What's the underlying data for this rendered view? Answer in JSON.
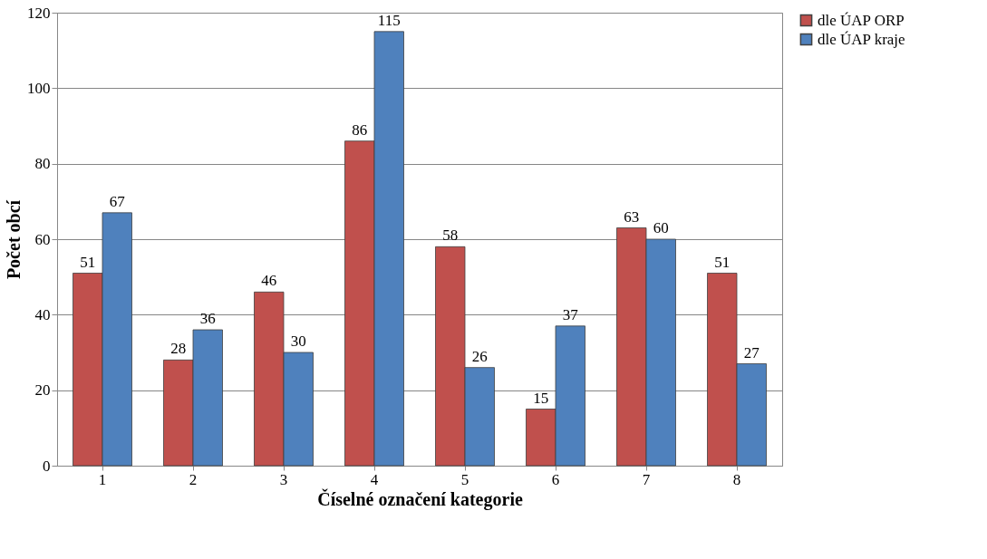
{
  "chart_data": {
    "type": "bar",
    "xlabel": "Číselné označení kategorie",
    "ylabel": "Počet obcí",
    "categories": [
      "1",
      "2",
      "3",
      "4",
      "5",
      "6",
      "7",
      "8"
    ],
    "series": [
      {
        "name": "dle ÚAP ORP",
        "color": "#c0504d",
        "values": [
          51,
          28,
          46,
          86,
          58,
          15,
          63,
          51
        ]
      },
      {
        "name": "dle ÚAP kraje",
        "color": "#4f81bd",
        "values": [
          67,
          36,
          30,
          115,
          26,
          37,
          60,
          27
        ]
      }
    ],
    "ylim": [
      0,
      120
    ],
    "yticks": [
      0,
      20,
      40,
      60,
      80,
      100,
      120
    ],
    "grid": "y",
    "legend": "right",
    "data_labels": true
  }
}
